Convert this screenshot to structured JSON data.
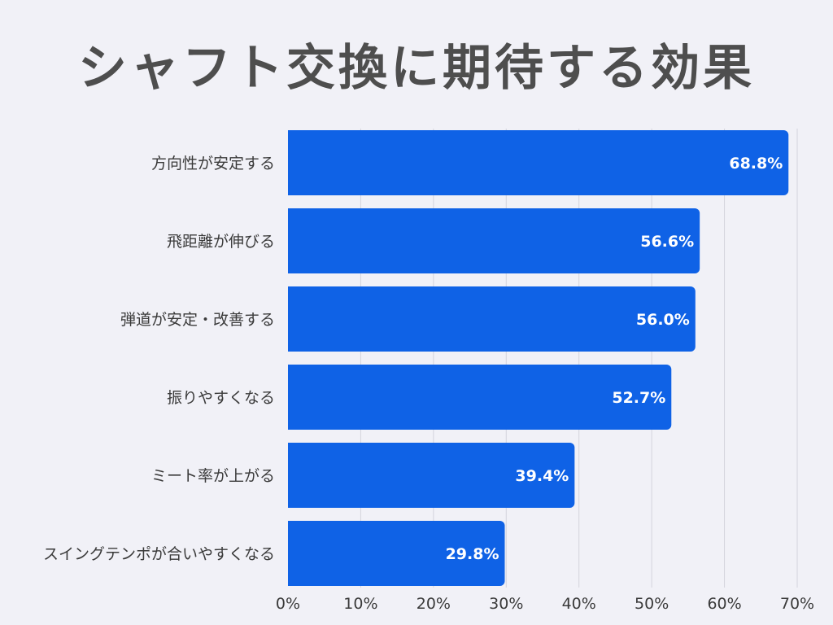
{
  "title": "シャフト交換に期待する効果",
  "chart_data": {
    "type": "bar",
    "orientation": "horizontal",
    "title": "シャフト交換に期待する効果",
    "categories": [
      "方向性が安定する",
      "飛距離が伸びる",
      "弾道が安定・改善する",
      "振りやすくなる",
      "ミート率が上がる",
      "スイングテンポが合いやすくなる"
    ],
    "values": [
      68.8,
      56.6,
      56.0,
      52.7,
      39.4,
      29.8
    ],
    "value_labels": [
      "68.8%",
      "56.6%",
      "56.0%",
      "52.7%",
      "39.4%",
      "29.8%"
    ],
    "xlim": [
      0,
      70
    ],
    "xticks": [
      0,
      10,
      20,
      30,
      40,
      50,
      60,
      70
    ],
    "xtick_labels": [
      "0%",
      "10%",
      "20%",
      "30%",
      "40%",
      "50%",
      "60%",
      "70%"
    ],
    "xlabel": "",
    "ylabel": "",
    "grid": true,
    "legend": "none",
    "colors": {
      "bar": "#0f62e6",
      "grid": "#d4d4dc",
      "label": "#3a3a3a",
      "value_label": "#ffffff",
      "title": "#4e4e4e",
      "background": "#f1f1f7"
    }
  }
}
